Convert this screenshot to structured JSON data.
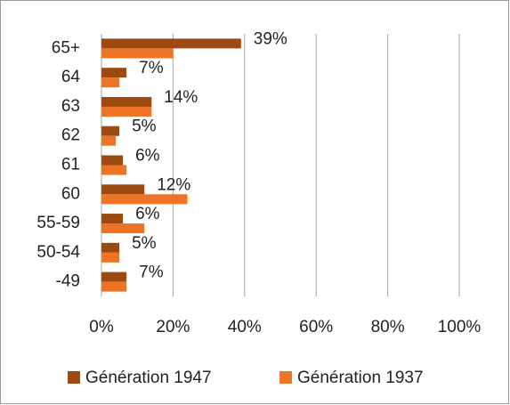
{
  "chart_data": {
    "type": "hbar",
    "categories": [
      "65+",
      "64",
      "63",
      "62",
      "61",
      "60",
      "55-59",
      "50-54",
      "-49"
    ],
    "series": [
      {
        "name": "Génération 1947",
        "color": "#9c4a12",
        "values": [
          39,
          7,
          14,
          5,
          6,
          12,
          6,
          5,
          7
        ],
        "value_labels": [
          "39%",
          "7%",
          "14%",
          "5%",
          "6%",
          "12%",
          "6%",
          "5%",
          "7%"
        ]
      },
      {
        "name": "Génération 1937",
        "color": "#ec7424",
        "values": [
          20,
          5,
          14,
          4,
          7,
          24,
          12,
          5,
          7
        ]
      }
    ],
    "xlim": [
      0,
      100
    ],
    "xticks": [
      {
        "value": 0,
        "label": "0%"
      },
      {
        "value": 20,
        "label": "20%"
      },
      {
        "value": 40,
        "label": "40%"
      },
      {
        "value": 60,
        "label": "60%"
      },
      {
        "value": 80,
        "label": "80%"
      },
      {
        "value": 100,
        "label": "100%"
      }
    ],
    "grid": true,
    "legend": "bottom"
  }
}
